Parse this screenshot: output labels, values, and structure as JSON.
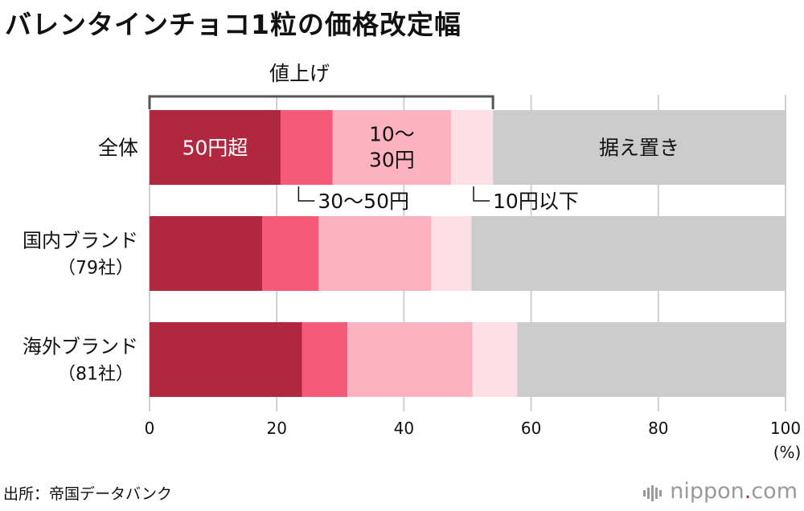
{
  "title": "バレンタインチョコ1粒の価格改定幅",
  "source": "出所：帝国データバンク",
  "logo": {
    "name": "nippon",
    "dot": ".",
    "suffix": "com"
  },
  "colors": {
    "over50": "#b0283f",
    "from30to50": "#f55a78",
    "from10to30": "#fdb2bf",
    "under10": "#fde0e5",
    "unchanged": "#cccccc",
    "grid": "#cfcfcf",
    "bracket": "#555555"
  },
  "chart_data": {
    "type": "bar",
    "orientation": "horizontal",
    "stacked": true,
    "categories": [
      {
        "label": "全体"
      },
      {
        "label": "国内ブランド",
        "sublabel": "（79社）"
      },
      {
        "label": "海外ブランド",
        "sublabel": "（81社）"
      }
    ],
    "series": [
      {
        "name": "50円超",
        "color": "#b0283f",
        "values": [
          20.6,
          17.7,
          24.0
        ]
      },
      {
        "name": "30〜50円",
        "color": "#f55a78",
        "values": [
          8.2,
          8.9,
          7.1
        ]
      },
      {
        "name": "10〜30円",
        "color": "#fdb2bf",
        "values": [
          18.6,
          17.7,
          19.7
        ]
      },
      {
        "name": "10円以下",
        "color": "#fde0e5",
        "values": [
          6.6,
          6.3,
          7.0
        ]
      },
      {
        "name": "据え置き",
        "color": "#cccccc",
        "values": [
          46.0,
          49.4,
          42.2
        ]
      }
    ],
    "bracket_label": "値上げ",
    "xlim": [
      0,
      100
    ],
    "xticks": [
      0,
      20,
      40,
      60,
      80,
      100
    ],
    "xunit": "(%)",
    "grid": true,
    "inline_labels": {
      "over50": "50円超",
      "from10to30_line1": "10〜",
      "from10to30_line2": "30円",
      "unchanged": "据え置き",
      "callout_30to50": "30〜50円",
      "callout_under10": "10円以下"
    }
  }
}
